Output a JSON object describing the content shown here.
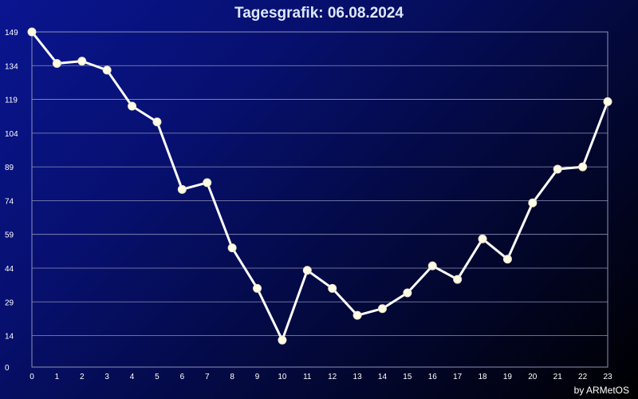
{
  "title": "Tagesgrafik: 06.08.2024",
  "credit": "by ARMetOS",
  "colors": {
    "line": "#ffffff",
    "marker": "#fffbe6",
    "grid": "#8d92b8",
    "text": "#ffffff"
  },
  "chart_data": {
    "type": "line",
    "title": "Tagesgrafik: 06.08.2024",
    "xlabel": "",
    "ylabel": "",
    "x": [
      0,
      1,
      2,
      3,
      4,
      5,
      6,
      7,
      8,
      9,
      10,
      11,
      12,
      13,
      14,
      15,
      16,
      17,
      18,
      19,
      20,
      21,
      22,
      23
    ],
    "xticks": [
      "0",
      "1",
      "2",
      "3",
      "4",
      "5",
      "6",
      "7",
      "8",
      "9",
      "10",
      "11",
      "12",
      "13",
      "14",
      "15",
      "16",
      "17",
      "18",
      "19",
      "20",
      "21",
      "22",
      "23"
    ],
    "yticks": [
      "0",
      "14",
      "29",
      "44",
      "59",
      "74",
      "89",
      "104",
      "119",
      "134",
      "149"
    ],
    "ylim": [
      0,
      149
    ],
    "grid": true,
    "series": [
      {
        "values": [
          149,
          135,
          136,
          132,
          116,
          109,
          79,
          82,
          53,
          35,
          12,
          43,
          35,
          23,
          26,
          33,
          45,
          39,
          57,
          48,
          73,
          88,
          89,
          118
        ]
      }
    ]
  }
}
